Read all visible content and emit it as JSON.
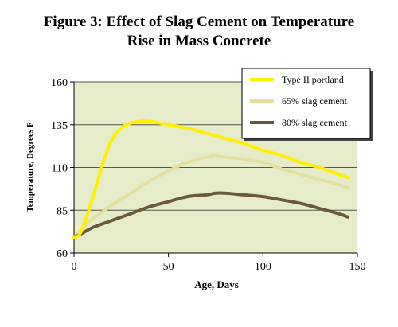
{
  "chart_data": {
    "type": "line",
    "title": [
      "Figure 3: Effect of Slag Cement on Temperature",
      "Rise in Mass Concrete"
    ],
    "xlabel": "Age, Days",
    "ylabel": "Temperature, Degrees F",
    "xlim": [
      0,
      150
    ],
    "ylim": [
      60,
      160
    ],
    "xticks": [
      "0",
      "50",
      "100",
      "150"
    ],
    "yticks": [
      "60",
      "85",
      "110",
      "135",
      "160"
    ],
    "grid": "horizontal",
    "legend_position": "top-right",
    "background": "#e6ecca",
    "series": [
      {
        "name": "Type II portland",
        "color": "#ffee00",
        "x": [
          0,
          3,
          7,
          12,
          16,
          20,
          25,
          30,
          35,
          40,
          50,
          60,
          70,
          80,
          90,
          100,
          110,
          120,
          130,
          140,
          145
        ],
        "y": [
          69,
          71,
          82,
          100,
          115,
          126,
          133,
          136,
          137,
          137,
          135,
          133,
          130,
          127,
          124,
          120,
          117,
          113,
          110,
          106,
          104
        ]
      },
      {
        "name": "65% slag cement",
        "color": "#e3df9d",
        "x": [
          0,
          5,
          10,
          15,
          20,
          30,
          40,
          50,
          60,
          70,
          75,
          80,
          90,
          100,
          110,
          120,
          130,
          140,
          145
        ],
        "y": [
          69,
          75,
          80,
          84,
          88,
          95,
          102,
          108,
          113,
          116,
          117,
          116,
          115,
          113,
          109,
          106,
          103,
          100,
          98
        ]
      },
      {
        "name": "80% slag cement",
        "color": "#6b5a3a",
        "x": [
          0,
          5,
          10,
          15,
          20,
          25,
          30,
          40,
          50,
          60,
          70,
          75,
          80,
          90,
          100,
          110,
          120,
          130,
          140,
          145
        ],
        "y": [
          69,
          72,
          75,
          77,
          79,
          81,
          83,
          87,
          90,
          93,
          94,
          95,
          95,
          94,
          93,
          91,
          89,
          86,
          83,
          81
        ]
      }
    ]
  }
}
